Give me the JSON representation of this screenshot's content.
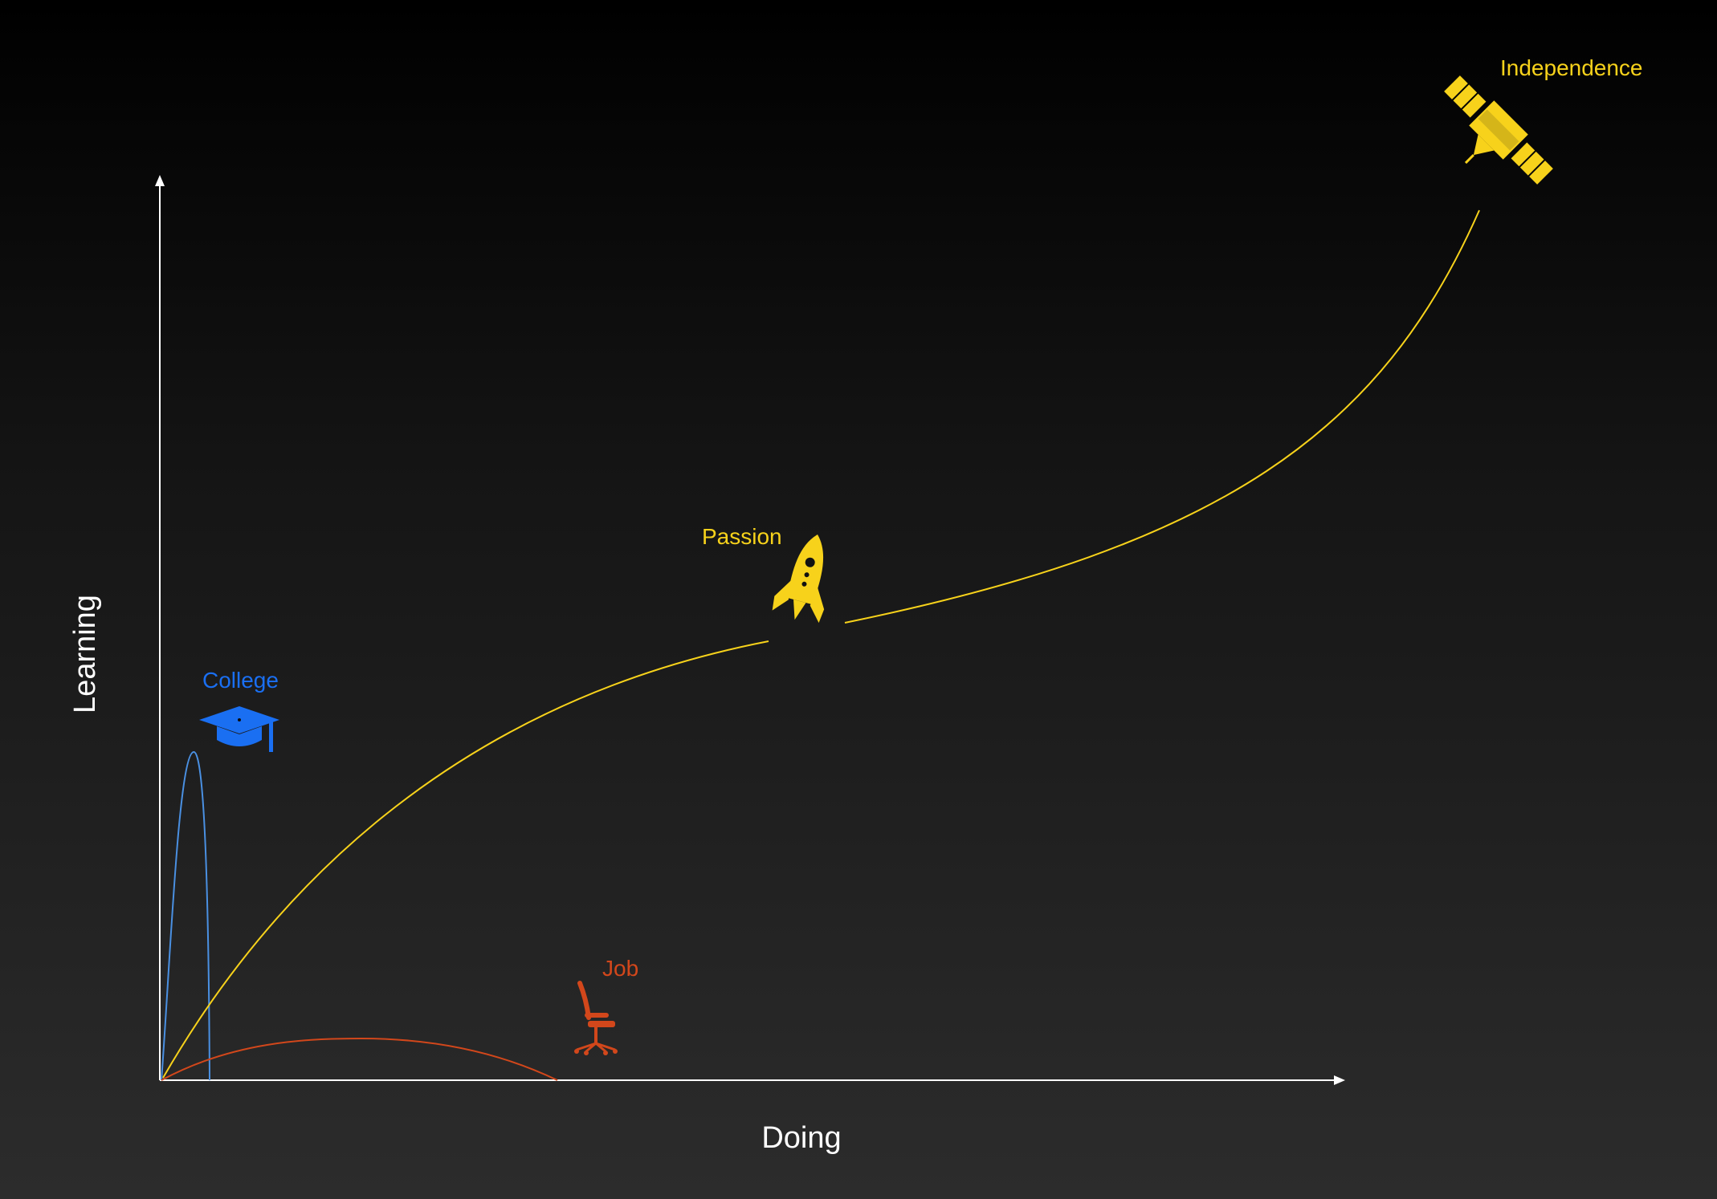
{
  "axes": {
    "x_label": "Doing",
    "y_label": "Learning"
  },
  "paths": [
    {
      "id": "college",
      "label": "College",
      "color": "#1a6ff2",
      "icon": "graduation-cap-icon"
    },
    {
      "id": "job",
      "label": "Job",
      "color": "#d2471b",
      "icon": "office-chair-icon"
    },
    {
      "id": "passion",
      "label": "Passion",
      "color": "#f7d21b",
      "icon": "rocket-icon"
    },
    {
      "id": "independence",
      "label": "Independence",
      "color": "#f7d21b",
      "icon": "satellite-icon"
    }
  ],
  "colors": {
    "axis": "#ffffff",
    "college_curve": "#4a90e2",
    "job_curve": "#d2471b",
    "passion_curve": "#f7d21b"
  }
}
